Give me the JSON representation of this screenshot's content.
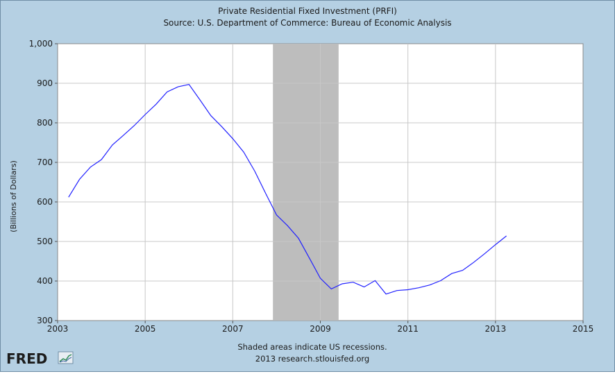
{
  "chart_data": {
    "type": "line",
    "title": "Private Residential Fixed Investment (PRFI)",
    "subtitle": "Source: U.S. Department of Commerce: Bureau of Economic Analysis",
    "xlabel": "",
    "ylabel": "(Billions of Dollars)",
    "xlim": [
      2003,
      2015
    ],
    "ylim": [
      300,
      1000
    ],
    "x_ticks": [
      2003,
      2005,
      2007,
      2009,
      2011,
      2013,
      2015
    ],
    "x_tick_labels": [
      "2003",
      "2005",
      "2007",
      "2009",
      "2011",
      "2013",
      "2015"
    ],
    "y_ticks": [
      300,
      400,
      500,
      600,
      700,
      800,
      900,
      1000
    ],
    "y_tick_labels": [
      "300",
      "400",
      "500",
      "600",
      "700",
      "800",
      "900",
      "1,000"
    ],
    "grid": true,
    "line_color": "#2020ff",
    "recession_color": "#bdbdbd",
    "recessions": [
      [
        2007.917,
        2009.417
      ]
    ],
    "series": [
      {
        "x": [
          2003.25,
          2003.5,
          2003.75,
          2004.0,
          2004.25,
          2004.5,
          2004.75,
          2005.0,
          2005.25,
          2005.5,
          2005.75,
          2006.0,
          2006.25,
          2006.5,
          2006.75,
          2007.0,
          2007.25,
          2007.5,
          2007.75,
          2008.0,
          2008.25,
          2008.5,
          2008.75,
          2009.0,
          2009.25,
          2009.5,
          2009.75,
          2010.0,
          2010.25,
          2010.5,
          2010.75,
          2011.0,
          2011.25,
          2011.5,
          2011.75,
          2012.0,
          2012.25,
          2012.5,
          2012.75,
          2013.0,
          2013.25
        ],
        "values": [
          612,
          657,
          688,
          707,
          744,
          768,
          793,
          821,
          847,
          878,
          891,
          897,
          858,
          818,
          790,
          760,
          726,
          678,
          622,
          567,
          540,
          508,
          458,
          407,
          380,
          393,
          397,
          385,
          401,
          367,
          376,
          378,
          383,
          390,
          401,
          419,
          427,
          447,
          469,
          492,
          514
        ]
      }
    ],
    "footer_note": "Shaded areas indicate US recessions.",
    "footer_source": "2013 research.stlouisfed.org",
    "logo_text": "FRED"
  }
}
